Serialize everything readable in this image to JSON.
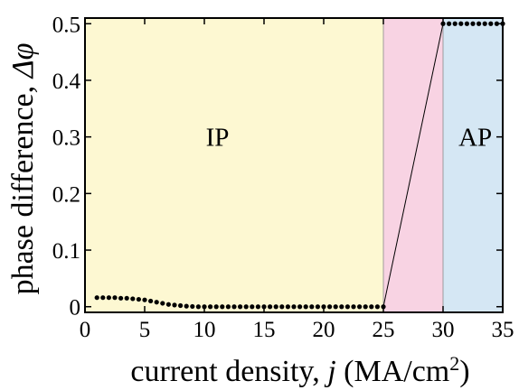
{
  "chart_data": {
    "type": "scatter",
    "title": "",
    "xlabel": "current density, ",
    "xlabel_var": "j",
    "xlabel_unit_prefix": " (MA/cm",
    "xlabel_unit_sup": "2",
    "xlabel_unit_suffix": ")",
    "ylabel": "phase difference, ",
    "ylabel_var": "Δφ",
    "xlim": [
      0,
      35
    ],
    "ylim": [
      -0.01,
      0.51
    ],
    "x_ticks": [
      0,
      5,
      10,
      15,
      20,
      25,
      30,
      35
    ],
    "x_tick_labels": [
      "0",
      "5",
      "10",
      "15",
      "20",
      "25",
      "30",
      "35"
    ],
    "y_ticks": [
      0,
      0.1,
      0.2,
      0.3,
      0.4,
      0.5
    ],
    "y_tick_labels": [
      "0",
      "0.1",
      "0.2",
      "0.3",
      "0.4",
      "0.5"
    ],
    "grid": false,
    "regions": [
      {
        "label": "IP",
        "x_start": 0,
        "x_end": 25,
        "color": "#fdf8d2",
        "label_x": 11.1,
        "label_y": 0.3
      },
      {
        "label": "",
        "x_start": 25,
        "x_end": 30,
        "color": "#f8d3e3"
      },
      {
        "label": "AP",
        "x_start": 30,
        "x_end": 35,
        "color": "#d5e7f4",
        "label_x": 32.7,
        "label_y": 0.3
      }
    ],
    "transition_line": {
      "x": [
        25,
        30
      ],
      "y": [
        0,
        0.5
      ]
    },
    "series": [
      {
        "color": "#000000",
        "x": [
          1,
          1.5,
          2,
          2.5,
          3,
          3.5,
          4,
          4.5,
          5,
          5.5,
          6,
          6.5,
          7,
          7.5,
          8,
          8.5,
          9,
          9.5,
          10,
          10.5,
          11,
          11.5,
          12,
          12.5,
          13,
          13.5,
          14,
          14.5,
          15,
          15.5,
          16,
          16.5,
          17,
          17.5,
          18,
          18.5,
          19,
          19.5,
          20,
          20.5,
          21,
          21.5,
          22,
          22.5,
          23,
          23.5,
          24,
          24.5,
          25,
          30,
          30.5,
          31,
          31.5,
          32,
          32.5,
          33,
          33.5,
          34,
          34.5,
          35
        ],
        "y": [
          0.016,
          0.016,
          0.016,
          0.016,
          0.015,
          0.015,
          0.014,
          0.013,
          0.012,
          0.01,
          0.008,
          0.006,
          0.004,
          0.003,
          0.002,
          0.001,
          0.0005,
          0,
          0,
          0,
          0,
          0,
          0,
          0,
          0,
          0,
          0,
          0,
          0,
          0,
          0,
          0,
          0,
          0,
          0,
          0,
          0,
          0,
          0,
          0,
          0,
          0,
          0,
          0,
          0,
          0,
          0,
          0,
          0,
          0.5,
          0.5,
          0.5,
          0.5,
          0.5,
          0.5,
          0.5,
          0.5,
          0.5,
          0.5,
          0.5
        ]
      }
    ]
  }
}
